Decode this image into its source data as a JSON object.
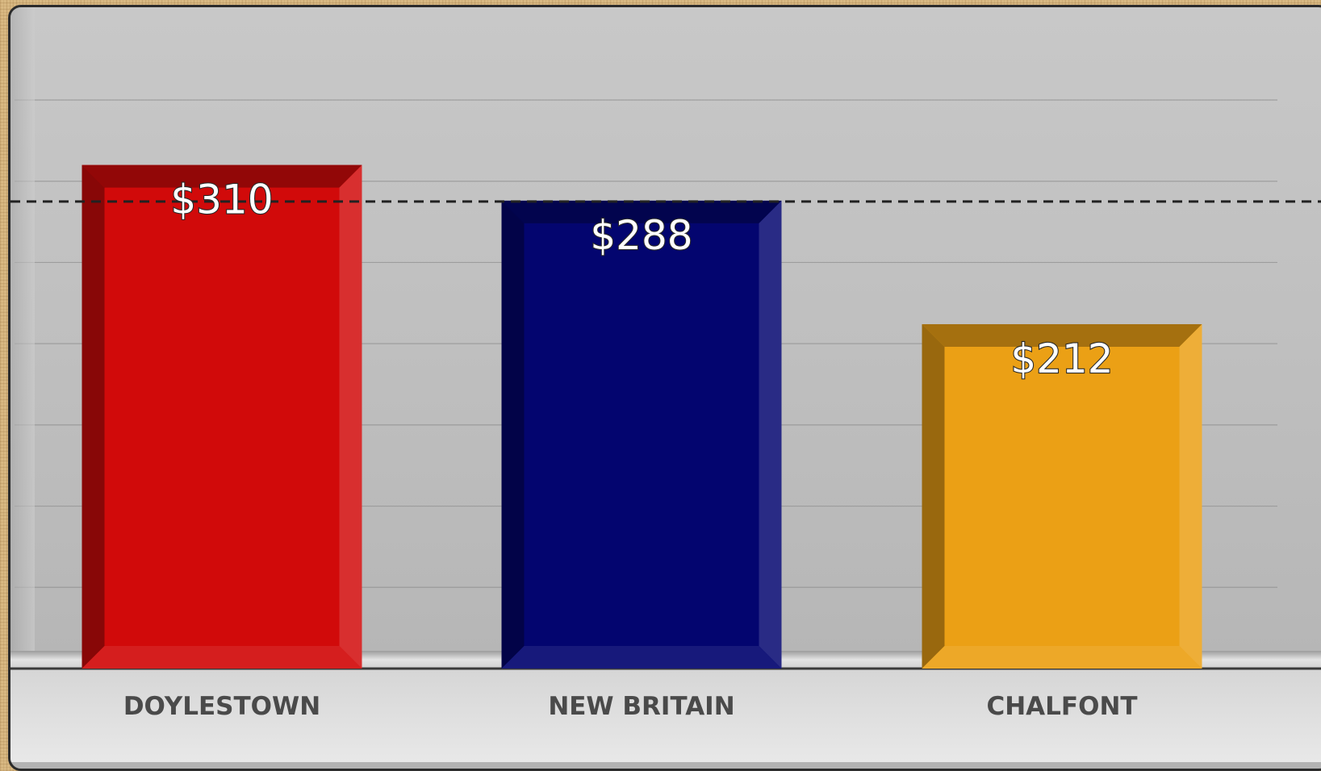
{
  "chart_data": {
    "type": "bar",
    "categories": [
      "DOYLESTOWN",
      "NEW BRITAIN",
      "CHALFONT"
    ],
    "values": [
      310,
      288,
      212
    ],
    "value_labels": [
      "$310",
      "$288",
      "$212"
    ],
    "colors": [
      "#d10a0a",
      "#03056f",
      "#eba015"
    ],
    "reference_line": {
      "value": 287.5,
      "style": "dashed",
      "color": "#222222"
    },
    "ylim": [
      0,
      350
    ],
    "grid": true,
    "title": "",
    "xlabel": "",
    "ylabel": ""
  }
}
